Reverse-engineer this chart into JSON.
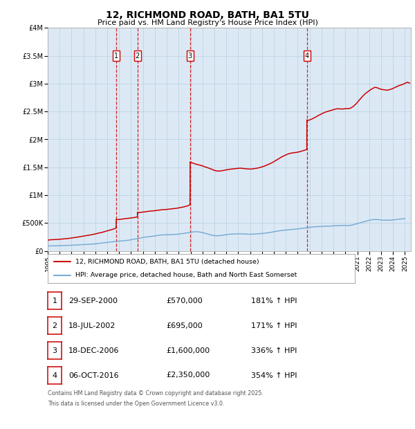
{
  "title": "12, RICHMOND ROAD, BATH, BA1 5TU",
  "subtitle": "Price paid vs. HM Land Registry's House Price Index (HPI)",
  "legend_line1": "12, RICHMOND ROAD, BATH, BA1 5TU (detached house)",
  "legend_line2": "HPI: Average price, detached house, Bath and North East Somerset",
  "footer_line1": "Contains HM Land Registry data © Crown copyright and database right 2025.",
  "footer_line2": "This data is licensed under the Open Government Licence v3.0.",
  "transactions": [
    {
      "num": 1,
      "date": "29-SEP-2000",
      "year": 2000.75,
      "price": 570000,
      "label": "181% ↑ HPI"
    },
    {
      "num": 2,
      "date": "18-JUL-2002",
      "year": 2002.54,
      "price": 695000,
      "label": "171% ↑ HPI"
    },
    {
      "num": 3,
      "date": "18-DEC-2006",
      "year": 2006.96,
      "price": 1600000,
      "label": "336% ↑ HPI"
    },
    {
      "num": 4,
      "date": "06-OCT-2016",
      "year": 2016.77,
      "price": 2350000,
      "label": "354% ↑ HPI"
    }
  ],
  "price_color": "#cc0000",
  "hpi_color": "#7aadd4",
  "vline_color": "#cc0000",
  "plot_bg": "#dce9f5",
  "grid_color": "#b8cfe0",
  "ylim": [
    0,
    4000000
  ],
  "yticks": [
    0,
    500000,
    1000000,
    1500000,
    2000000,
    2500000,
    3000000,
    3500000,
    4000000
  ],
  "ytick_labels": [
    "£0",
    "£500K",
    "£1M",
    "£1.5M",
    "£2M",
    "£2.5M",
    "£3M",
    "£3.5M",
    "£4M"
  ],
  "xlim_start": 1995,
  "xlim_end": 2025.5,
  "hpi_data": [
    [
      1995.0,
      90000
    ],
    [
      1995.25,
      91500
    ],
    [
      1995.5,
      92500
    ],
    [
      1995.75,
      93500
    ],
    [
      1996.0,
      95000
    ],
    [
      1996.25,
      96500
    ],
    [
      1996.5,
      98500
    ],
    [
      1996.75,
      100500
    ],
    [
      1997.0,
      103000
    ],
    [
      1997.25,
      106000
    ],
    [
      1997.5,
      109000
    ],
    [
      1997.75,
      112000
    ],
    [
      1998.0,
      115000
    ],
    [
      1998.25,
      118000
    ],
    [
      1998.5,
      121000
    ],
    [
      1998.75,
      124000
    ],
    [
      1999.0,
      128000
    ],
    [
      1999.25,
      134000
    ],
    [
      1999.5,
      141000
    ],
    [
      1999.75,
      148000
    ],
    [
      2000.0,
      154000
    ],
    [
      2000.25,
      160000
    ],
    [
      2000.5,
      166000
    ],
    [
      2000.75,
      171000
    ],
    [
      2001.0,
      176000
    ],
    [
      2001.25,
      181000
    ],
    [
      2001.5,
      186000
    ],
    [
      2001.75,
      191000
    ],
    [
      2002.0,
      201000
    ],
    [
      2002.25,
      211000
    ],
    [
      2002.5,
      221000
    ],
    [
      2002.75,
      231000
    ],
    [
      2003.0,
      241000
    ],
    [
      2003.25,
      251000
    ],
    [
      2003.5,
      256000
    ],
    [
      2003.75,
      261000
    ],
    [
      2004.0,
      270000
    ],
    [
      2004.25,
      280000
    ],
    [
      2004.5,
      285000
    ],
    [
      2004.75,
      290000
    ],
    [
      2005.0,
      290000
    ],
    [
      2005.25,
      293000
    ],
    [
      2005.5,
      295000
    ],
    [
      2005.75,
      298000
    ],
    [
      2006.0,
      303000
    ],
    [
      2006.25,
      310000
    ],
    [
      2006.5,
      317000
    ],
    [
      2006.75,
      325000
    ],
    [
      2007.0,
      335000
    ],
    [
      2007.25,
      343000
    ],
    [
      2007.5,
      345000
    ],
    [
      2007.75,
      340000
    ],
    [
      2008.0,
      330000
    ],
    [
      2008.25,
      315000
    ],
    [
      2008.5,
      300000
    ],
    [
      2008.75,
      285000
    ],
    [
      2009.0,
      275000
    ],
    [
      2009.25,
      273000
    ],
    [
      2009.5,
      277000
    ],
    [
      2009.75,
      285000
    ],
    [
      2010.0,
      293000
    ],
    [
      2010.25,
      300000
    ],
    [
      2010.5,
      303000
    ],
    [
      2010.75,
      305000
    ],
    [
      2011.0,
      307000
    ],
    [
      2011.25,
      307000
    ],
    [
      2011.5,
      305000
    ],
    [
      2011.75,
      303000
    ],
    [
      2012.0,
      300000
    ],
    [
      2012.25,
      302000
    ],
    [
      2012.5,
      305000
    ],
    [
      2012.75,
      310000
    ],
    [
      2013.0,
      313000
    ],
    [
      2013.25,
      320000
    ],
    [
      2013.5,
      327000
    ],
    [
      2013.75,
      335000
    ],
    [
      2014.0,
      345000
    ],
    [
      2014.25,
      355000
    ],
    [
      2014.5,
      363000
    ],
    [
      2014.75,
      370000
    ],
    [
      2015.0,
      375000
    ],
    [
      2015.25,
      380000
    ],
    [
      2015.5,
      385000
    ],
    [
      2015.75,
      390000
    ],
    [
      2016.0,
      395000
    ],
    [
      2016.25,
      403000
    ],
    [
      2016.5,
      410000
    ],
    [
      2016.75,
      415000
    ],
    [
      2017.0,
      423000
    ],
    [
      2017.25,
      430000
    ],
    [
      2017.5,
      435000
    ],
    [
      2017.75,
      437000
    ],
    [
      2018.0,
      440000
    ],
    [
      2018.25,
      443000
    ],
    [
      2018.5,
      445000
    ],
    [
      2018.75,
      447000
    ],
    [
      2019.0,
      450000
    ],
    [
      2019.25,
      453000
    ],
    [
      2019.5,
      455000
    ],
    [
      2019.75,
      457000
    ],
    [
      2020.0,
      458000
    ],
    [
      2020.25,
      455000
    ],
    [
      2020.5,
      463000
    ],
    [
      2020.75,
      475000
    ],
    [
      2021.0,
      490000
    ],
    [
      2021.25,
      505000
    ],
    [
      2021.5,
      520000
    ],
    [
      2021.75,
      535000
    ],
    [
      2022.0,
      550000
    ],
    [
      2022.25,
      560000
    ],
    [
      2022.5,
      565000
    ],
    [
      2022.75,
      563000
    ],
    [
      2023.0,
      555000
    ],
    [
      2023.25,
      553000
    ],
    [
      2023.5,
      551000
    ],
    [
      2023.75,
      553000
    ],
    [
      2024.0,
      557000
    ],
    [
      2024.25,
      563000
    ],
    [
      2024.5,
      570000
    ],
    [
      2024.75,
      575000
    ],
    [
      2025.0,
      580000
    ]
  ],
  "price_data": [
    [
      1995.0,
      195000
    ],
    [
      1995.2,
      200000
    ],
    [
      1995.4,
      203000
    ],
    [
      1995.6,
      205000
    ],
    [
      1995.8,
      207000
    ],
    [
      1996.0,
      210000
    ],
    [
      1996.2,
      214000
    ],
    [
      1996.4,
      218000
    ],
    [
      1996.6,
      222000
    ],
    [
      1996.8,
      226000
    ],
    [
      1997.0,
      232000
    ],
    [
      1997.2,
      238000
    ],
    [
      1997.4,
      245000
    ],
    [
      1997.6,
      252000
    ],
    [
      1997.8,
      258000
    ],
    [
      1998.0,
      265000
    ],
    [
      1998.2,
      272000
    ],
    [
      1998.4,
      280000
    ],
    [
      1998.6,
      288000
    ],
    [
      1998.8,
      296000
    ],
    [
      1999.0,
      306000
    ],
    [
      1999.2,
      316000
    ],
    [
      1999.4,
      326000
    ],
    [
      1999.6,
      336000
    ],
    [
      1999.8,
      348000
    ],
    [
      2000.0,
      360000
    ],
    [
      2000.2,
      372000
    ],
    [
      2000.4,
      385000
    ],
    [
      2000.6,
      398000
    ],
    [
      2000.74,
      412000
    ],
    [
      2000.75,
      570000
    ],
    [
      2000.9,
      562000
    ],
    [
      2001.0,
      565000
    ],
    [
      2001.2,
      572000
    ],
    [
      2001.4,
      578000
    ],
    [
      2001.6,
      582000
    ],
    [
      2001.8,
      586000
    ],
    [
      2002.0,
      592000
    ],
    [
      2002.2,
      598000
    ],
    [
      2002.4,
      604000
    ],
    [
      2002.53,
      610000
    ],
    [
      2002.54,
      695000
    ],
    [
      2002.6,
      688000
    ],
    [
      2002.8,
      692000
    ],
    [
      2003.0,
      698000
    ],
    [
      2003.2,
      705000
    ],
    [
      2003.4,
      710000
    ],
    [
      2003.6,
      715000
    ],
    [
      2003.8,
      718000
    ],
    [
      2004.0,
      722000
    ],
    [
      2004.2,
      728000
    ],
    [
      2004.4,
      735000
    ],
    [
      2004.6,
      740000
    ],
    [
      2004.8,
      742000
    ],
    [
      2005.0,
      745000
    ],
    [
      2005.2,
      750000
    ],
    [
      2005.4,
      755000
    ],
    [
      2005.6,
      760000
    ],
    [
      2005.8,
      765000
    ],
    [
      2006.0,
      772000
    ],
    [
      2006.2,
      780000
    ],
    [
      2006.4,
      790000
    ],
    [
      2006.6,
      800000
    ],
    [
      2006.8,
      812000
    ],
    [
      2006.95,
      830000
    ],
    [
      2006.96,
      1600000
    ],
    [
      2007.0,
      1590000
    ],
    [
      2007.2,
      1575000
    ],
    [
      2007.4,
      1560000
    ],
    [
      2007.6,
      1548000
    ],
    [
      2007.8,
      1538000
    ],
    [
      2008.0,
      1525000
    ],
    [
      2008.2,
      1510000
    ],
    [
      2008.4,
      1495000
    ],
    [
      2008.6,
      1480000
    ],
    [
      2008.8,
      1462000
    ],
    [
      2009.0,
      1445000
    ],
    [
      2009.2,
      1435000
    ],
    [
      2009.4,
      1432000
    ],
    [
      2009.6,
      1438000
    ],
    [
      2009.8,
      1445000
    ],
    [
      2010.0,
      1455000
    ],
    [
      2010.2,
      1462000
    ],
    [
      2010.4,
      1468000
    ],
    [
      2010.6,
      1472000
    ],
    [
      2010.8,
      1478000
    ],
    [
      2011.0,
      1482000
    ],
    [
      2011.2,
      1485000
    ],
    [
      2011.4,
      1480000
    ],
    [
      2011.6,
      1475000
    ],
    [
      2011.8,
      1472000
    ],
    [
      2012.0,
      1468000
    ],
    [
      2012.2,
      1472000
    ],
    [
      2012.4,
      1478000
    ],
    [
      2012.6,
      1485000
    ],
    [
      2012.8,
      1495000
    ],
    [
      2013.0,
      1508000
    ],
    [
      2013.2,
      1522000
    ],
    [
      2013.4,
      1540000
    ],
    [
      2013.6,
      1558000
    ],
    [
      2013.8,
      1578000
    ],
    [
      2014.0,
      1602000
    ],
    [
      2014.2,
      1628000
    ],
    [
      2014.4,
      1655000
    ],
    [
      2014.6,
      1680000
    ],
    [
      2014.8,
      1702000
    ],
    [
      2015.0,
      1722000
    ],
    [
      2015.2,
      1740000
    ],
    [
      2015.4,
      1752000
    ],
    [
      2015.6,
      1760000
    ],
    [
      2015.8,
      1765000
    ],
    [
      2016.0,
      1772000
    ],
    [
      2016.2,
      1782000
    ],
    [
      2016.4,
      1795000
    ],
    [
      2016.6,
      1808000
    ],
    [
      2016.76,
      1820000
    ],
    [
      2016.77,
      2350000
    ],
    [
      2016.9,
      2342000
    ],
    [
      2017.1,
      2358000
    ],
    [
      2017.3,
      2378000
    ],
    [
      2017.5,
      2400000
    ],
    [
      2017.7,
      2425000
    ],
    [
      2017.9,
      2448000
    ],
    [
      2018.1,
      2468000
    ],
    [
      2018.3,
      2488000
    ],
    [
      2018.5,
      2502000
    ],
    [
      2018.7,
      2515000
    ],
    [
      2018.9,
      2528000
    ],
    [
      2019.1,
      2540000
    ],
    [
      2019.3,
      2550000
    ],
    [
      2019.5,
      2548000
    ],
    [
      2019.7,
      2545000
    ],
    [
      2019.9,
      2548000
    ],
    [
      2020.1,
      2555000
    ],
    [
      2020.3,
      2552000
    ],
    [
      2020.5,
      2568000
    ],
    [
      2020.7,
      2598000
    ],
    [
      2020.9,
      2638000
    ],
    [
      2021.1,
      2688000
    ],
    [
      2021.3,
      2738000
    ],
    [
      2021.5,
      2785000
    ],
    [
      2021.7,
      2825000
    ],
    [
      2021.9,
      2858000
    ],
    [
      2022.1,
      2888000
    ],
    [
      2022.3,
      2915000
    ],
    [
      2022.5,
      2935000
    ],
    [
      2022.7,
      2925000
    ],
    [
      2022.9,
      2905000
    ],
    [
      2023.1,
      2895000
    ],
    [
      2023.3,
      2888000
    ],
    [
      2023.5,
      2882000
    ],
    [
      2023.7,
      2892000
    ],
    [
      2023.9,
      2905000
    ],
    [
      2024.1,
      2925000
    ],
    [
      2024.3,
      2945000
    ],
    [
      2024.5,
      2965000
    ],
    [
      2024.7,
      2978000
    ],
    [
      2024.9,
      2995000
    ],
    [
      2025.0,
      3005000
    ],
    [
      2025.1,
      3015000
    ],
    [
      2025.2,
      3025000
    ],
    [
      2025.3,
      3018000
    ],
    [
      2025.4,
      3010000
    ]
  ]
}
